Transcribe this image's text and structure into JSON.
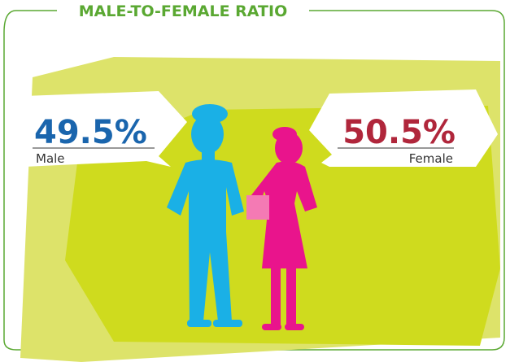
{
  "title": "MALE-TO-FEMALE RATIO",
  "male": {
    "percent": "49.5%",
    "label": "Male"
  },
  "female": {
    "percent": "50.5%",
    "label": "Female"
  }
}
